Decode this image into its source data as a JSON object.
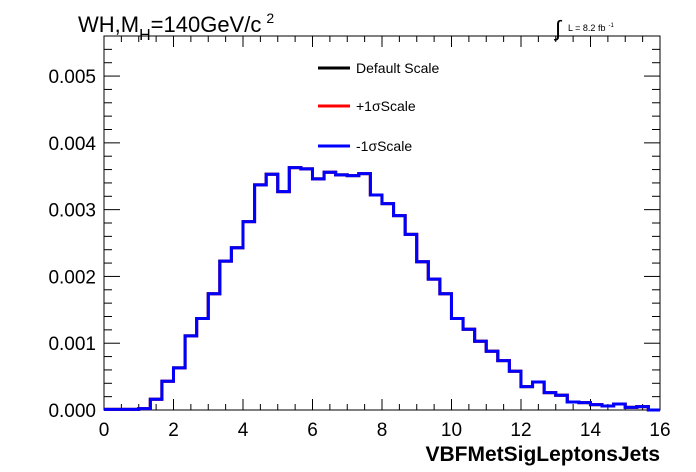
{
  "chart_data": {
    "type": "line",
    "title": "WH,M",
    "title_sub": "H",
    "title_rest": "=140GeV/c",
    "title_sup": "2",
    "lumi_label": "L = 8.2 fb",
    "lumi_sup": "-1",
    "xlabel": "VBFMetSigLeptonsJets",
    "ylabel": "",
    "xlim": [
      0,
      16
    ],
    "ylim": [
      0,
      0.0056
    ],
    "x_ticks": [
      0,
      2,
      4,
      6,
      8,
      10,
      12,
      14,
      16
    ],
    "y_ticks": [
      0.0,
      0.001,
      0.002,
      0.003,
      0.004,
      0.005
    ],
    "x_tick_labels": [
      "0",
      "2",
      "4",
      "6",
      "8",
      "10",
      "12",
      "14",
      "16"
    ],
    "y_tick_labels": [
      "0.000",
      "0.001",
      "0.002",
      "0.003",
      "0.004",
      "0.005"
    ],
    "grid": false,
    "legend_position": "top-center",
    "bin_width": 0.3333,
    "bin_edges_start": 0,
    "series": [
      {
        "name": "Default Scale",
        "color": "#000000",
        "values": [
          1e-05,
          1e-05,
          1e-05,
          2e-05,
          0.00016,
          0.00043,
          0.00063,
          0.00111,
          0.00137,
          0.00174,
          0.00223,
          0.00243,
          0.00282,
          0.00337,
          0.00353,
          0.00327,
          0.00363,
          0.00361,
          0.00346,
          0.00356,
          0.00352,
          0.00351,
          0.00354,
          0.00322,
          0.00309,
          0.00291,
          0.00263,
          0.00222,
          0.00196,
          0.00174,
          0.00137,
          0.00121,
          0.00103,
          0.00088,
          0.00074,
          0.00058,
          0.00035,
          0.00042,
          0.00026,
          0.00022,
          0.00012,
          0.00011,
          8e-05,
          6e-05,
          9e-05,
          4e-05,
          5e-05,
          0.0
        ]
      },
      {
        "name": "+1σScale",
        "color": "#ff0000",
        "values": [
          1e-05,
          1e-05,
          1e-05,
          2e-05,
          0.00016,
          0.00043,
          0.00063,
          0.00111,
          0.00137,
          0.00174,
          0.00223,
          0.00243,
          0.00282,
          0.00337,
          0.00353,
          0.00327,
          0.00363,
          0.00361,
          0.00346,
          0.00356,
          0.00352,
          0.00351,
          0.00354,
          0.00322,
          0.00309,
          0.00291,
          0.00263,
          0.00222,
          0.00196,
          0.00174,
          0.00137,
          0.00121,
          0.00103,
          0.00088,
          0.00074,
          0.00058,
          0.00035,
          0.00042,
          0.00026,
          0.00022,
          0.00012,
          0.00011,
          8e-05,
          6e-05,
          9e-05,
          4e-05,
          5e-05,
          0.0
        ]
      },
      {
        "name": "-1σScale",
        "color": "#0000ff",
        "values": [
          1e-05,
          1e-05,
          1e-05,
          2e-05,
          0.00016,
          0.00043,
          0.00063,
          0.00111,
          0.00137,
          0.00174,
          0.00223,
          0.00243,
          0.00282,
          0.00337,
          0.00353,
          0.00327,
          0.00363,
          0.00361,
          0.00346,
          0.00356,
          0.00352,
          0.00351,
          0.00354,
          0.00322,
          0.00309,
          0.00291,
          0.00263,
          0.00222,
          0.00196,
          0.00174,
          0.00137,
          0.00121,
          0.00103,
          0.00088,
          0.00074,
          0.00058,
          0.00035,
          0.00042,
          0.00026,
          0.00022,
          0.00012,
          0.00011,
          8e-05,
          6e-05,
          9e-05,
          4e-05,
          5e-05,
          0.0
        ]
      }
    ]
  }
}
